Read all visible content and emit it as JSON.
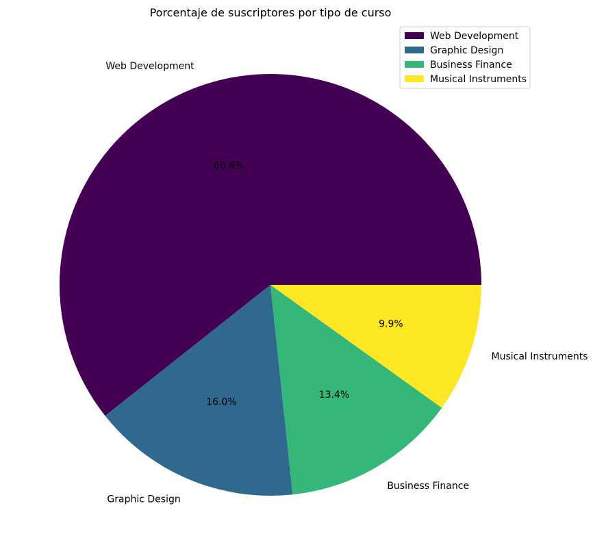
{
  "chart_data": {
    "type": "pie",
    "title": "Porcentaje de suscriptores por tipo de curso",
    "legend_position": "top-right",
    "slices": [
      {
        "label": "Web Development",
        "percent": 60.6,
        "percent_label": "60.6%",
        "color": "#440154"
      },
      {
        "label": "Graphic Design",
        "percent": 16.0,
        "percent_label": "16.0%",
        "color": "#31688e"
      },
      {
        "label": "Business Finance",
        "percent": 13.4,
        "percent_label": "13.4%",
        "color": "#35b779"
      },
      {
        "label": "Musical Instruments",
        "percent": 9.9,
        "percent_label": "9.9%",
        "color": "#fde725"
      }
    ]
  }
}
